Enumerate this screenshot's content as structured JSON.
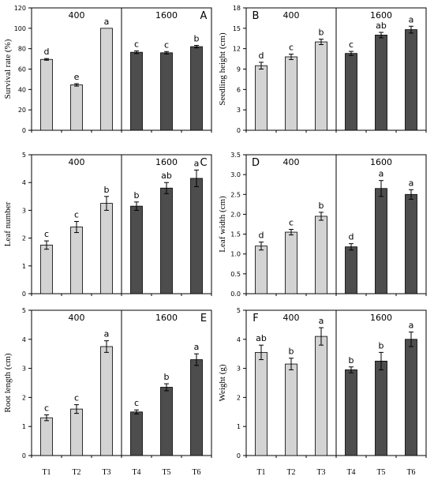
{
  "colors": {
    "light_bar": "#d3d3d3",
    "dark_bar": "#4d4d4d",
    "axis": "#000000"
  },
  "chart_data": [
    {
      "type": "bar",
      "panel_label": "A",
      "ylabel": "Survival rate (%)",
      "ylim": [
        0,
        120
      ],
      "ytick_step": 20,
      "categories": [
        "T1",
        "T2",
        "T3",
        "T4",
        "T5",
        "T6"
      ],
      "values": [
        69.5,
        44.5,
        100,
        76.5,
        76,
        82
      ],
      "errors": [
        0.8,
        1.2,
        0,
        1.3,
        1.2,
        1.2
      ],
      "letters": [
        "d",
        "e",
        "a",
        "c",
        "c",
        "b"
      ],
      "groups": [
        {
          "label": "400",
          "categories": [
            "T1",
            "T2",
            "T3"
          ]
        },
        {
          "label": "1600",
          "categories": [
            "T4",
            "T5",
            "T6"
          ]
        }
      ]
    },
    {
      "type": "bar",
      "panel_label": "B",
      "ylabel": "Seedling height (cm)",
      "ylim": [
        0,
        18
      ],
      "ytick_step": 3,
      "categories": [
        "T1",
        "T2",
        "T3",
        "T4",
        "T5",
        "T6"
      ],
      "values": [
        9.5,
        10.8,
        13,
        11.3,
        14,
        14.8
      ],
      "errors": [
        0.5,
        0.4,
        0.4,
        0.3,
        0.4,
        0.5
      ],
      "letters": [
        "d",
        "c",
        "b",
        "c",
        "ab",
        "a"
      ],
      "groups": [
        {
          "label": "400",
          "categories": [
            "T1",
            "T2",
            "T3"
          ]
        },
        {
          "label": "1600",
          "categories": [
            "T4",
            "T5",
            "T6"
          ]
        }
      ]
    },
    {
      "type": "bar",
      "panel_label": "C",
      "ylabel": "Leaf number",
      "ylim": [
        0,
        5
      ],
      "ytick_step": 1,
      "categories": [
        "T1",
        "T2",
        "T3",
        "T4",
        "T5",
        "T6"
      ],
      "values": [
        1.75,
        2.4,
        3.25,
        3.15,
        3.8,
        4.15
      ],
      "errors": [
        0.15,
        0.2,
        0.25,
        0.15,
        0.2,
        0.3
      ],
      "letters": [
        "c",
        "c",
        "b",
        "b",
        "ab",
        "a"
      ],
      "groups": [
        {
          "label": "400",
          "categories": [
            "T1",
            "T2",
            "T3"
          ]
        },
        {
          "label": "1600",
          "categories": [
            "T4",
            "T5",
            "T6"
          ]
        }
      ]
    },
    {
      "type": "bar",
      "panel_label": "D",
      "ylabel": "Leaf width (cm)",
      "ylim": [
        0,
        3.5
      ],
      "ytick_step": 0.5,
      "categories": [
        "T1",
        "T2",
        "T3",
        "T4",
        "T5",
        "T6"
      ],
      "values": [
        1.2,
        1.55,
        1.95,
        1.18,
        2.65,
        2.5
      ],
      "errors": [
        0.1,
        0.07,
        0.1,
        0.08,
        0.2,
        0.12
      ],
      "letters": [
        "d",
        "c",
        "b",
        "d",
        "a",
        "a"
      ],
      "groups": [
        {
          "label": "400",
          "categories": [
            "T1",
            "T2",
            "T3"
          ]
        },
        {
          "label": "1600",
          "categories": [
            "T4",
            "T5",
            "T6"
          ]
        }
      ]
    },
    {
      "type": "bar",
      "panel_label": "E",
      "ylabel": "Root length (cm)",
      "ylim": [
        0,
        5
      ],
      "ytick_step": 1,
      "categories": [
        "T1",
        "T2",
        "T3",
        "T4",
        "T5",
        "T6"
      ],
      "values": [
        1.3,
        1.6,
        3.75,
        1.5,
        2.35,
        3.3
      ],
      "errors": [
        0.1,
        0.15,
        0.2,
        0.07,
        0.12,
        0.2
      ],
      "letters": [
        "c",
        "c",
        "a",
        "c",
        "b",
        "a"
      ],
      "groups": [
        {
          "label": "400",
          "categories": [
            "T1",
            "T2",
            "T3"
          ]
        },
        {
          "label": "1600",
          "categories": [
            "T4",
            "T5",
            "T6"
          ]
        }
      ]
    },
    {
      "type": "bar",
      "panel_label": "F",
      "ylabel": "Weight (g)",
      "ylim": [
        0,
        5
      ],
      "ytick_step": 1,
      "categories": [
        "T1",
        "T2",
        "T3",
        "T4",
        "T5",
        "T6"
      ],
      "values": [
        3.55,
        3.15,
        4.1,
        2.95,
        3.25,
        4
      ],
      "errors": [
        0.25,
        0.2,
        0.3,
        0.1,
        0.3,
        0.25
      ],
      "letters": [
        "ab",
        "b",
        "a",
        "b",
        "b",
        "a"
      ],
      "groups": [
        {
          "label": "400",
          "categories": [
            "T1",
            "T2",
            "T3"
          ]
        },
        {
          "label": "1600",
          "categories": [
            "T4",
            "T5",
            "T6"
          ]
        }
      ]
    }
  ]
}
